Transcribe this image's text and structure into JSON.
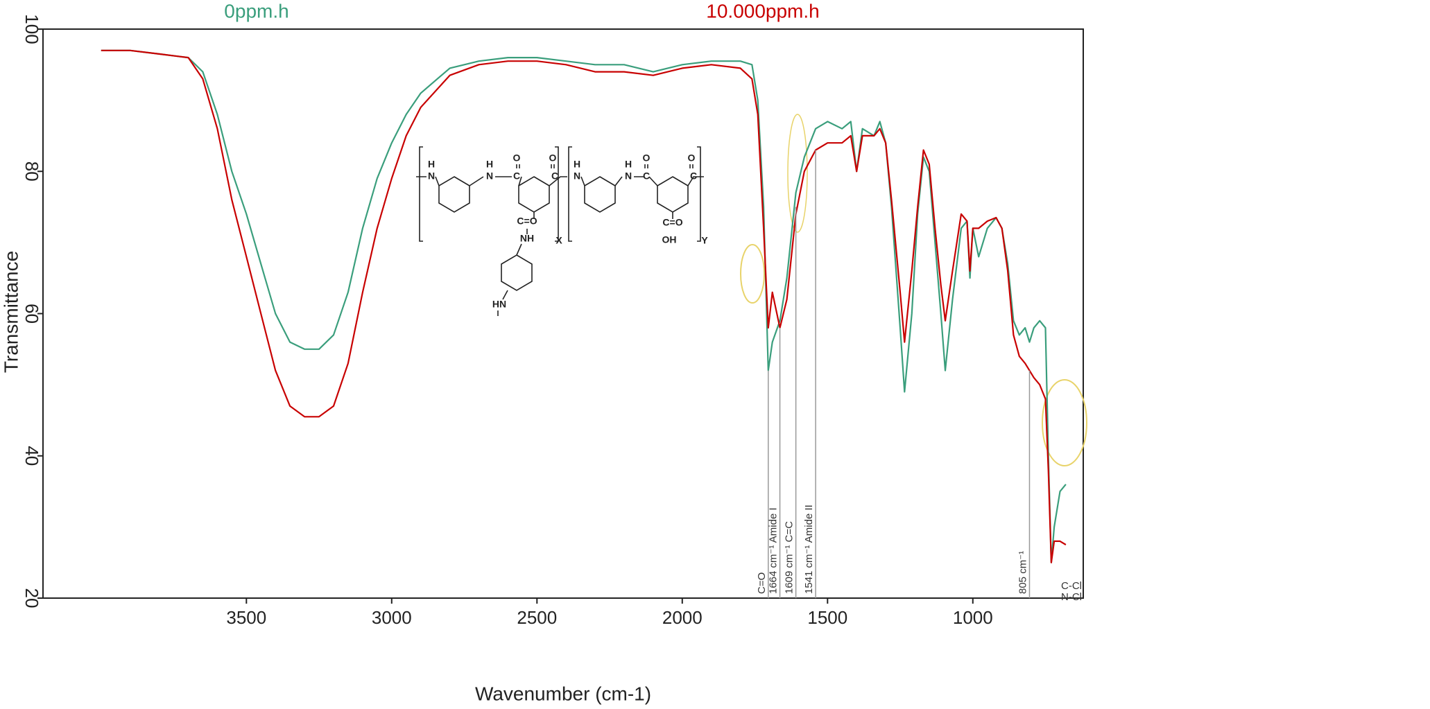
{
  "chart_data": {
    "type": "line",
    "x_label": "Wavenumber (cm-1)",
    "y_label": "Transmittance",
    "xlim": [
      4200,
      620
    ],
    "ylim": [
      20,
      100
    ],
    "xticks": [
      3500,
      3000,
      2500,
      2000,
      1500,
      1000
    ],
    "yticks": [
      20,
      40,
      60,
      80,
      100
    ],
    "x": [
      4000,
      3900,
      3800,
      3700,
      3650,
      3600,
      3550,
      3500,
      3450,
      3400,
      3350,
      3300,
      3250,
      3200,
      3150,
      3100,
      3050,
      3000,
      2950,
      2900,
      2800,
      2700,
      2600,
      2500,
      2400,
      2300,
      2200,
      2100,
      2000,
      1900,
      1800,
      1760,
      1740,
      1720,
      1704,
      1690,
      1664,
      1640,
      1609,
      1580,
      1541,
      1500,
      1450,
      1420,
      1400,
      1380,
      1340,
      1320,
      1300,
      1280,
      1250,
      1235,
      1210,
      1190,
      1170,
      1150,
      1130,
      1110,
      1095,
      1070,
      1040,
      1020,
      1010,
      1000,
      980,
      950,
      920,
      900,
      880,
      860,
      840,
      820,
      805,
      790,
      770,
      750,
      740,
      730,
      720,
      700,
      680
    ],
    "series": [
      {
        "name": "0ppm.h",
        "color": "#3a9e7c",
        "values": [
          97,
          97,
          96.5,
          96,
          94,
          88,
          80,
          74,
          67,
          60,
          56,
          55,
          55,
          57,
          63,
          72,
          79,
          84,
          88,
          91,
          94.5,
          95.5,
          96,
          96,
          95.5,
          95,
          95,
          94,
          95,
          95.5,
          95.5,
          95,
          90,
          75,
          52,
          56,
          59,
          65,
          77,
          82,
          86,
          87,
          86,
          87,
          80,
          86,
          85,
          87,
          84,
          75,
          58,
          49,
          60,
          74,
          82,
          80,
          70,
          60,
          52,
          62,
          72,
          73,
          65,
          72,
          68,
          72,
          73.5,
          72,
          67,
          59,
          57,
          58,
          56,
          58,
          59,
          58,
          40,
          25,
          30,
          35,
          36
        ]
      },
      {
        "name": "10.000ppm.h",
        "color": "#c80000",
        "values": [
          97,
          97,
          96.5,
          96,
          93,
          86,
          76,
          68,
          60,
          52,
          47,
          45.5,
          45.5,
          47,
          53,
          63,
          72,
          79,
          85,
          89,
          93.5,
          95,
          95.5,
          95.5,
          95,
          94,
          94,
          93.5,
          94.5,
          95,
          94.5,
          93,
          88,
          72,
          58,
          63,
          58,
          62,
          74,
          80,
          83,
          84,
          84,
          85,
          80,
          85,
          85,
          86,
          84,
          76,
          63,
          56,
          66,
          75,
          83,
          81,
          72,
          64,
          59,
          66,
          74,
          73,
          66,
          72,
          72,
          73,
          73.5,
          72,
          66,
          57,
          54,
          53,
          52,
          51,
          50,
          48,
          38,
          25,
          28,
          28,
          27.5
        ]
      }
    ],
    "annotations": [
      {
        "x": 1704,
        "y": 52,
        "text": "C=O"
      },
      {
        "x": 1664,
        "y": 58,
        "text": "1664 cm⁻¹ Amide I"
      },
      {
        "x": 1609,
        "y": 75,
        "text": "1609 cm⁻¹ C=C"
      },
      {
        "x": 1541,
        "y": 83,
        "text": "1541 cm⁻¹ Amide II"
      },
      {
        "x": 805,
        "y": 52,
        "text": "805 cm⁻¹"
      }
    ],
    "corner_labels": [
      "C-Cl",
      "N-Cl"
    ]
  },
  "structure": {
    "labels": [
      "H",
      "N",
      "H",
      "N",
      "C",
      "O",
      "C",
      "O",
      "C=O",
      "NH",
      "HN",
      "X",
      "H",
      "N",
      "H",
      "N",
      "C",
      "O",
      "C",
      "O",
      "C=O",
      "OH",
      "Y"
    ]
  }
}
